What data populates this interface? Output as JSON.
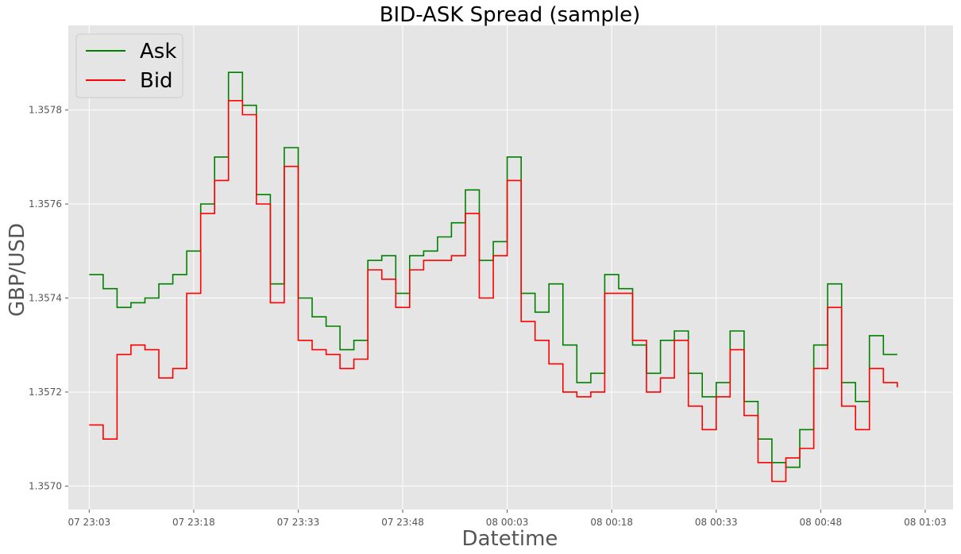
{
  "chart_data": {
    "type": "line",
    "title": "BID-ASK Spread (sample)",
    "xlabel": "Datetime",
    "ylabel": "GBP/USD",
    "x_ticks": [
      "07 23:03",
      "07 23:18",
      "07 23:33",
      "07 23:48",
      "08 00:03",
      "08 00:18",
      "08 00:33",
      "08 00:48",
      "08 01:03"
    ],
    "y_ticks": [
      "1.3570",
      "1.3572",
      "1.3574",
      "1.3576",
      "1.3578"
    ],
    "xlim": [
      "07 23:00",
      "08 01:07"
    ],
    "ylim": [
      1.35695,
      1.35798
    ],
    "grid": true,
    "legend_position": "top-left",
    "series": [
      {
        "name": "Ask",
        "color": "#008000",
        "x": [
          "07 23:03",
          "07 23:05",
          "07 23:07",
          "07 23:09",
          "07 23:11",
          "07 23:13",
          "07 23:15",
          "07 23:17",
          "07 23:19",
          "07 23:21",
          "07 23:23",
          "07 23:25",
          "07 23:27",
          "07 23:29",
          "07 23:31",
          "07 23:33",
          "07 23:35",
          "07 23:37",
          "07 23:39",
          "07 23:41",
          "07 23:43",
          "07 23:45",
          "07 23:47",
          "07 23:49",
          "07 23:51",
          "07 23:53",
          "07 23:55",
          "07 23:57",
          "07 23:59",
          "08 00:01",
          "08 00:03",
          "08 00:05",
          "08 00:07",
          "08 00:09",
          "08 00:11",
          "08 00:13",
          "08 00:15",
          "08 00:17",
          "08 00:19",
          "08 00:21",
          "08 00:23",
          "08 00:25",
          "08 00:27",
          "08 00:29",
          "08 00:31",
          "08 00:33",
          "08 00:35",
          "08 00:37",
          "08 00:39",
          "08 00:41",
          "08 00:43",
          "08 00:45",
          "08 00:47",
          "08 00:49",
          "08 00:51",
          "08 00:53",
          "08 00:55",
          "08 00:57",
          "08 00:59"
        ],
        "values": [
          1.35745,
          1.35742,
          1.35738,
          1.35739,
          1.3574,
          1.35743,
          1.35745,
          1.3575,
          1.3576,
          1.3577,
          1.35788,
          1.35781,
          1.35762,
          1.35743,
          1.35772,
          1.3574,
          1.35736,
          1.35734,
          1.35729,
          1.35731,
          1.35748,
          1.35749,
          1.35741,
          1.35749,
          1.3575,
          1.35753,
          1.35756,
          1.35763,
          1.35748,
          1.35752,
          1.3577,
          1.35741,
          1.35737,
          1.35743,
          1.3573,
          1.35722,
          1.35724,
          1.35745,
          1.35742,
          1.3573,
          1.35724,
          1.35731,
          1.35733,
          1.35724,
          1.35719,
          1.35722,
          1.35733,
          1.35718,
          1.3571,
          1.35705,
          1.35704,
          1.35712,
          1.3573,
          1.35743,
          1.35722,
          1.35718,
          1.35732,
          1.35728,
          1.35728
        ]
      },
      {
        "name": "Bid",
        "color": "#ff0000",
        "x": [
          "07 23:03",
          "07 23:05",
          "07 23:07",
          "07 23:09",
          "07 23:11",
          "07 23:13",
          "07 23:15",
          "07 23:17",
          "07 23:19",
          "07 23:21",
          "07 23:23",
          "07 23:25",
          "07 23:27",
          "07 23:29",
          "07 23:31",
          "07 23:33",
          "07 23:35",
          "07 23:37",
          "07 23:39",
          "07 23:41",
          "07 23:43",
          "07 23:45",
          "07 23:47",
          "07 23:49",
          "07 23:51",
          "07 23:53",
          "07 23:55",
          "07 23:57",
          "07 23:59",
          "08 00:01",
          "08 00:03",
          "08 00:05",
          "08 00:07",
          "08 00:09",
          "08 00:11",
          "08 00:13",
          "08 00:15",
          "08 00:17",
          "08 00:19",
          "08 00:21",
          "08 00:23",
          "08 00:25",
          "08 00:27",
          "08 00:29",
          "08 00:31",
          "08 00:33",
          "08 00:35",
          "08 00:37",
          "08 00:39",
          "08 00:41",
          "08 00:43",
          "08 00:45",
          "08 00:47",
          "08 00:49",
          "08 00:51",
          "08 00:53",
          "08 00:55",
          "08 00:57",
          "08 00:59"
        ],
        "values": [
          1.35713,
          1.3571,
          1.35728,
          1.3573,
          1.35729,
          1.35723,
          1.35725,
          1.35741,
          1.35758,
          1.35765,
          1.35782,
          1.35779,
          1.3576,
          1.35739,
          1.35768,
          1.35731,
          1.35729,
          1.35728,
          1.35725,
          1.35727,
          1.35746,
          1.35744,
          1.35738,
          1.35746,
          1.35748,
          1.35748,
          1.35749,
          1.35758,
          1.3574,
          1.35749,
          1.35765,
          1.35735,
          1.35731,
          1.35726,
          1.3572,
          1.35719,
          1.3572,
          1.35741,
          1.35741,
          1.35731,
          1.3572,
          1.35723,
          1.35731,
          1.35717,
          1.35712,
          1.35719,
          1.35729,
          1.35715,
          1.35705,
          1.35701,
          1.35706,
          1.35708,
          1.35725,
          1.35738,
          1.35717,
          1.35712,
          1.35725,
          1.35722,
          1.35721
        ]
      }
    ]
  }
}
